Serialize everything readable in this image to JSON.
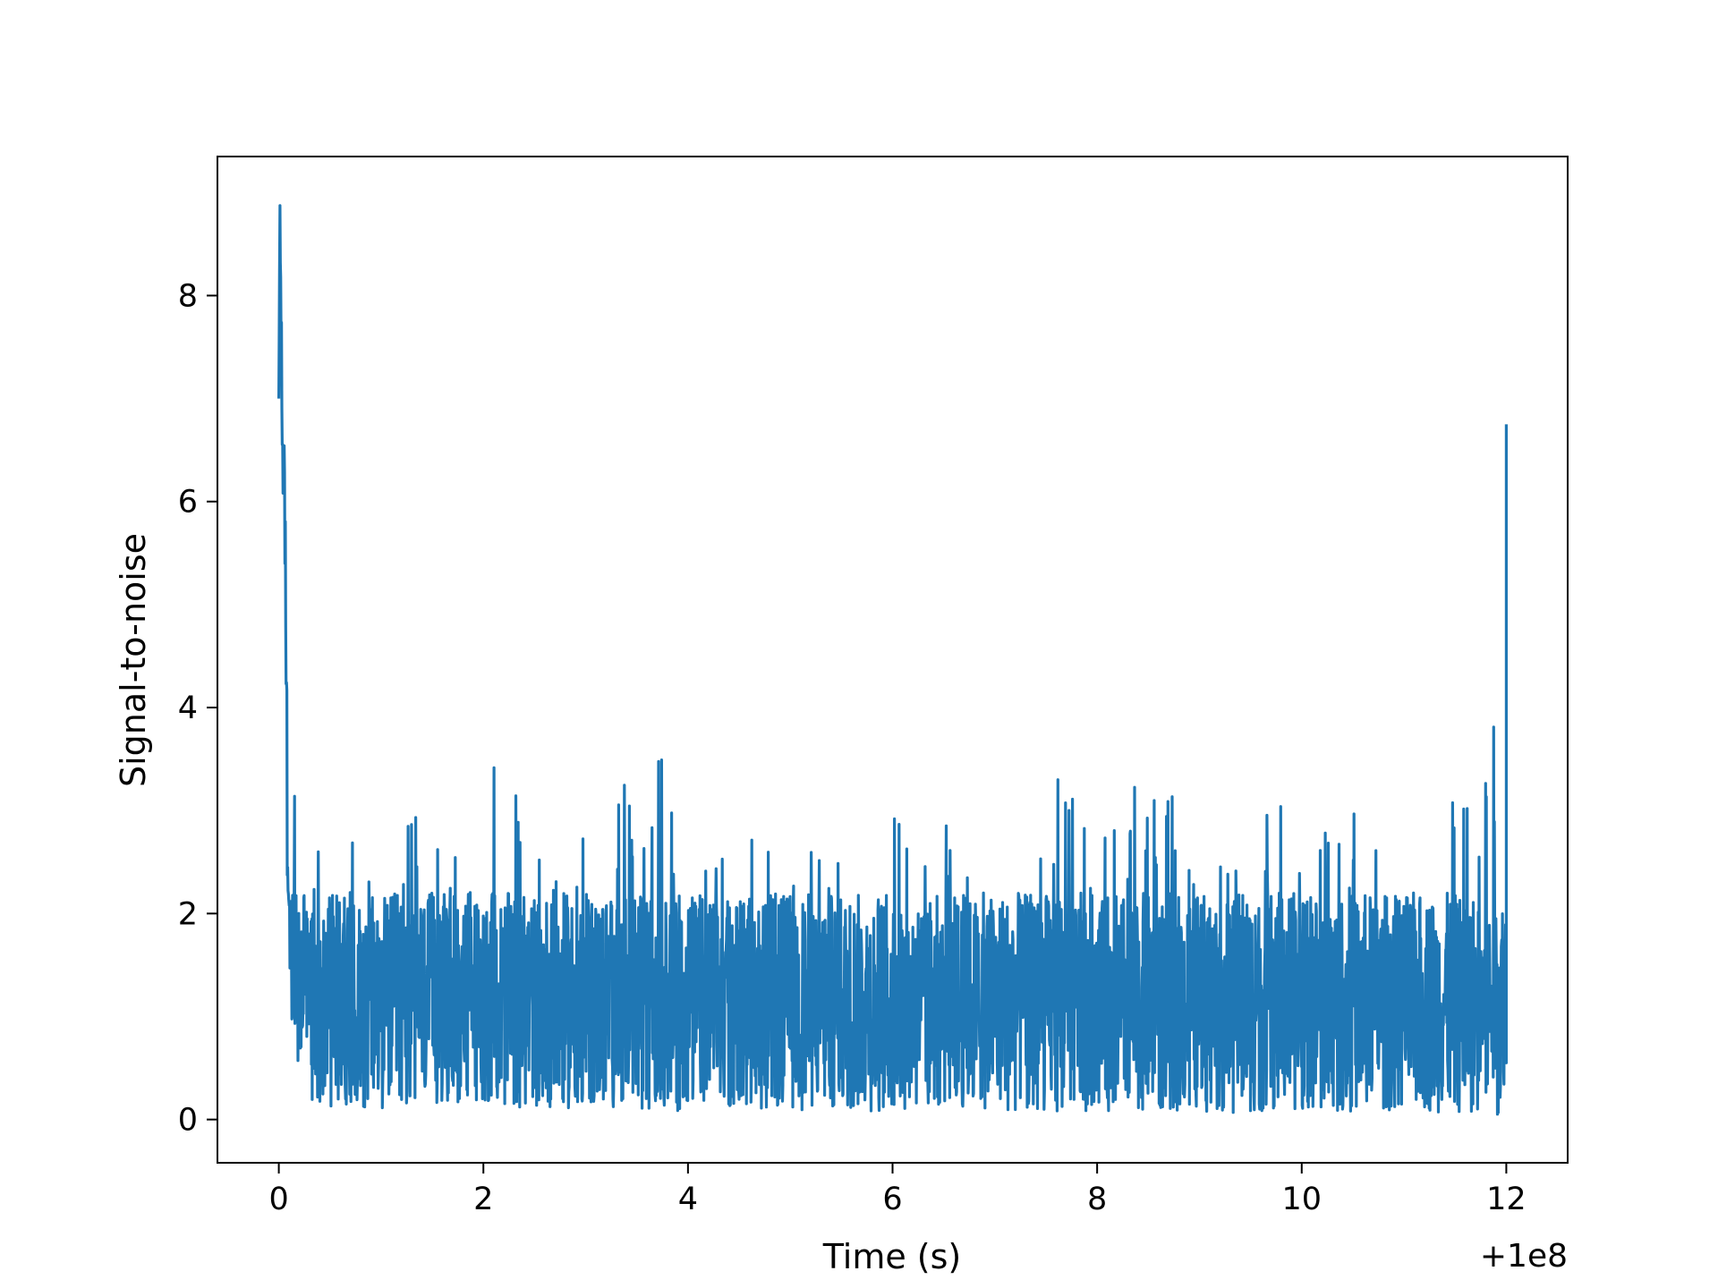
{
  "chart_data": {
    "type": "line",
    "title": "",
    "xlabel": "Time (s)",
    "ylabel": "Signal-to-noise",
    "x_offset_label": "+1e8",
    "xlim": [
      -0.6,
      12.6
    ],
    "ylim": [
      -0.42,
      9.35
    ],
    "xticks": [
      0,
      2,
      4,
      6,
      8,
      10,
      12
    ],
    "xtick_labels": [
      "0",
      "2",
      "4",
      "6",
      "8",
      "10",
      "12"
    ],
    "yticks": [
      0,
      2,
      4,
      6,
      8
    ],
    "ytick_labels": [
      "0",
      "2",
      "4",
      "6",
      "8"
    ],
    "grid": false,
    "legend": "none",
    "series": [
      {
        "color": "#1f77b4",
        "x": [
          0.0,
          0.01,
          0.02,
          0.03,
          0.04,
          0.05,
          0.06,
          0.08,
          0.1,
          0.12,
          0.14,
          0.16,
          0.18,
          0.2,
          0.25,
          0.3,
          0.4,
          0.5,
          0.6,
          0.8,
          1.0,
          1.2,
          1.4,
          1.6,
          1.8,
          2.0,
          2.2,
          2.4,
          2.6,
          2.8,
          3.0,
          3.2,
          3.5,
          3.8,
          4.0,
          4.5,
          5.0,
          5.5,
          6.0,
          6.2,
          6.5,
          7.0,
          7.5,
          7.6,
          8.0,
          8.4,
          8.75,
          9.0,
          9.5,
          9.85,
          10.0,
          10.5,
          11.0,
          11.5,
          11.8,
          11.9,
          11.95,
          11.99,
          12.0
        ],
        "envelope_high": [
          7.0,
          8.9,
          8.8,
          7.8,
          6.4,
          6.6,
          6.5,
          4.6,
          4.3,
          4.1,
          3.5,
          3.2,
          3.0,
          3.2,
          2.7,
          2.5,
          3.0,
          2.8,
          2.6,
          2.9,
          3.1,
          2.7,
          3.2,
          2.6,
          2.7,
          2.8,
          4.2,
          2.6,
          2.9,
          3.1,
          2.7,
          2.8,
          3.55,
          3.5,
          2.3,
          2.8,
          2.6,
          2.8,
          3.0,
          3.5,
          2.9,
          2.4,
          2.7,
          3.47,
          2.6,
          3.3,
          3.55,
          2.5,
          2.4,
          3.9,
          2.6,
          3.1,
          2.5,
          3.3,
          3.4,
          4.1,
          3.2,
          3.4,
          6.75
        ],
        "envelope_low": [
          7.0,
          8.0,
          7.0,
          6.2,
          5.9,
          5.5,
          4.5,
          2.8,
          1.8,
          0.9,
          0.7,
          0.6,
          0.4,
          0.3,
          0.3,
          0.2,
          0.15,
          0.12,
          0.15,
          0.12,
          0.1,
          0.15,
          0.12,
          0.12,
          0.12,
          0.15,
          0.1,
          0.12,
          0.12,
          0.1,
          0.12,
          0.12,
          0.1,
          0.1,
          0.05,
          0.1,
          0.08,
          0.08,
          0.06,
          0.08,
          0.1,
          0.08,
          0.06,
          0.08,
          0.08,
          0.08,
          0.07,
          0.08,
          0.06,
          0.06,
          0.08,
          0.08,
          0.08,
          0.06,
          0.06,
          0.05,
          0.05,
          0.45,
          0.55
        ]
      }
    ]
  }
}
